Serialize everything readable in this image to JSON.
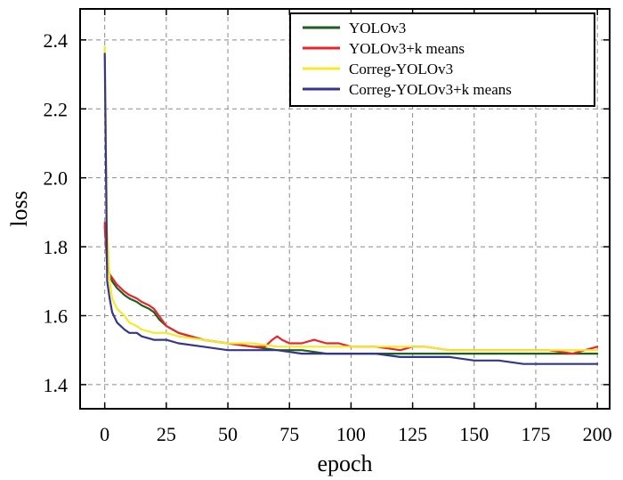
{
  "chart_data": {
    "type": "line",
    "title": "",
    "xlabel": "epoch",
    "ylabel": "loss",
    "xlim": [
      -10,
      205
    ],
    "ylim": [
      1.33,
      2.49
    ],
    "xticks": [
      0,
      25,
      50,
      75,
      100,
      125,
      150,
      175,
      200
    ],
    "xtick_labels": [
      "0",
      "25",
      "50",
      "75",
      "100",
      "125",
      "150",
      "175",
      "200"
    ],
    "yticks": [
      1.4,
      1.6,
      1.8,
      2.0,
      2.2,
      2.4
    ],
    "ytick_labels": [
      "1.4",
      "1.6",
      "1.8",
      "2.0",
      "2.2",
      "2.4"
    ],
    "grid": true,
    "legend_position": "top-right",
    "series": [
      {
        "name": "YOLOv3",
        "color": "#1e5e1e",
        "x": [
          0,
          1,
          2,
          3,
          5,
          8,
          10,
          13,
          15,
          18,
          20,
          22,
          25,
          30,
          35,
          40,
          50,
          60,
          70,
          80,
          90,
          100,
          110,
          120,
          130,
          140,
          150,
          160,
          170,
          180,
          190,
          200
        ],
        "y": [
          1.86,
          1.75,
          1.72,
          1.7,
          1.68,
          1.66,
          1.65,
          1.64,
          1.63,
          1.62,
          1.61,
          1.59,
          1.57,
          1.55,
          1.54,
          1.53,
          1.52,
          1.51,
          1.5,
          1.5,
          1.49,
          1.49,
          1.49,
          1.49,
          1.49,
          1.49,
          1.49,
          1.49,
          1.49,
          1.49,
          1.49,
          1.49
        ]
      },
      {
        "name": "YOLOv3+k means",
        "color": "#e8262a",
        "x": [
          0,
          1,
          2,
          3,
          5,
          8,
          10,
          13,
          15,
          18,
          20,
          22,
          25,
          30,
          35,
          40,
          50,
          60,
          65,
          68,
          70,
          72,
          75,
          80,
          85,
          90,
          95,
          100,
          110,
          120,
          125,
          130,
          140,
          150,
          160,
          170,
          180,
          190,
          200
        ],
        "y": [
          1.87,
          1.75,
          1.72,
          1.71,
          1.69,
          1.67,
          1.66,
          1.65,
          1.64,
          1.63,
          1.62,
          1.6,
          1.57,
          1.55,
          1.54,
          1.53,
          1.52,
          1.51,
          1.51,
          1.53,
          1.54,
          1.53,
          1.52,
          1.52,
          1.53,
          1.52,
          1.52,
          1.51,
          1.51,
          1.5,
          1.51,
          1.51,
          1.5,
          1.5,
          1.5,
          1.5,
          1.5,
          1.49,
          1.51
        ]
      },
      {
        "name": "Correg-YOLOv3",
        "color": "#f4ea2a",
        "x": [
          0,
          1,
          2,
          3,
          5,
          8,
          10,
          13,
          15,
          20,
          25,
          30,
          40,
          50,
          60,
          70,
          80,
          90,
          100,
          110,
          120,
          130,
          140,
          150,
          160,
          170,
          180,
          190,
          200
        ],
        "y": [
          2.38,
          1.85,
          1.7,
          1.65,
          1.62,
          1.6,
          1.58,
          1.57,
          1.56,
          1.55,
          1.55,
          1.54,
          1.53,
          1.52,
          1.52,
          1.51,
          1.51,
          1.51,
          1.51,
          1.51,
          1.51,
          1.51,
          1.5,
          1.5,
          1.5,
          1.5,
          1.5,
          1.5,
          1.5
        ]
      },
      {
        "name": "Correg-YOLOv3+k means",
        "color": "#35358c",
        "x": [
          0,
          1,
          2,
          3,
          5,
          8,
          10,
          13,
          15,
          20,
          25,
          30,
          40,
          50,
          60,
          70,
          80,
          90,
          100,
          110,
          120,
          130,
          140,
          150,
          160,
          170,
          180,
          190,
          200
        ],
        "y": [
          2.36,
          1.7,
          1.65,
          1.61,
          1.58,
          1.56,
          1.55,
          1.55,
          1.54,
          1.53,
          1.53,
          1.52,
          1.51,
          1.5,
          1.5,
          1.5,
          1.49,
          1.49,
          1.49,
          1.49,
          1.48,
          1.48,
          1.48,
          1.47,
          1.47,
          1.46,
          1.46,
          1.46,
          1.46
        ]
      }
    ]
  }
}
